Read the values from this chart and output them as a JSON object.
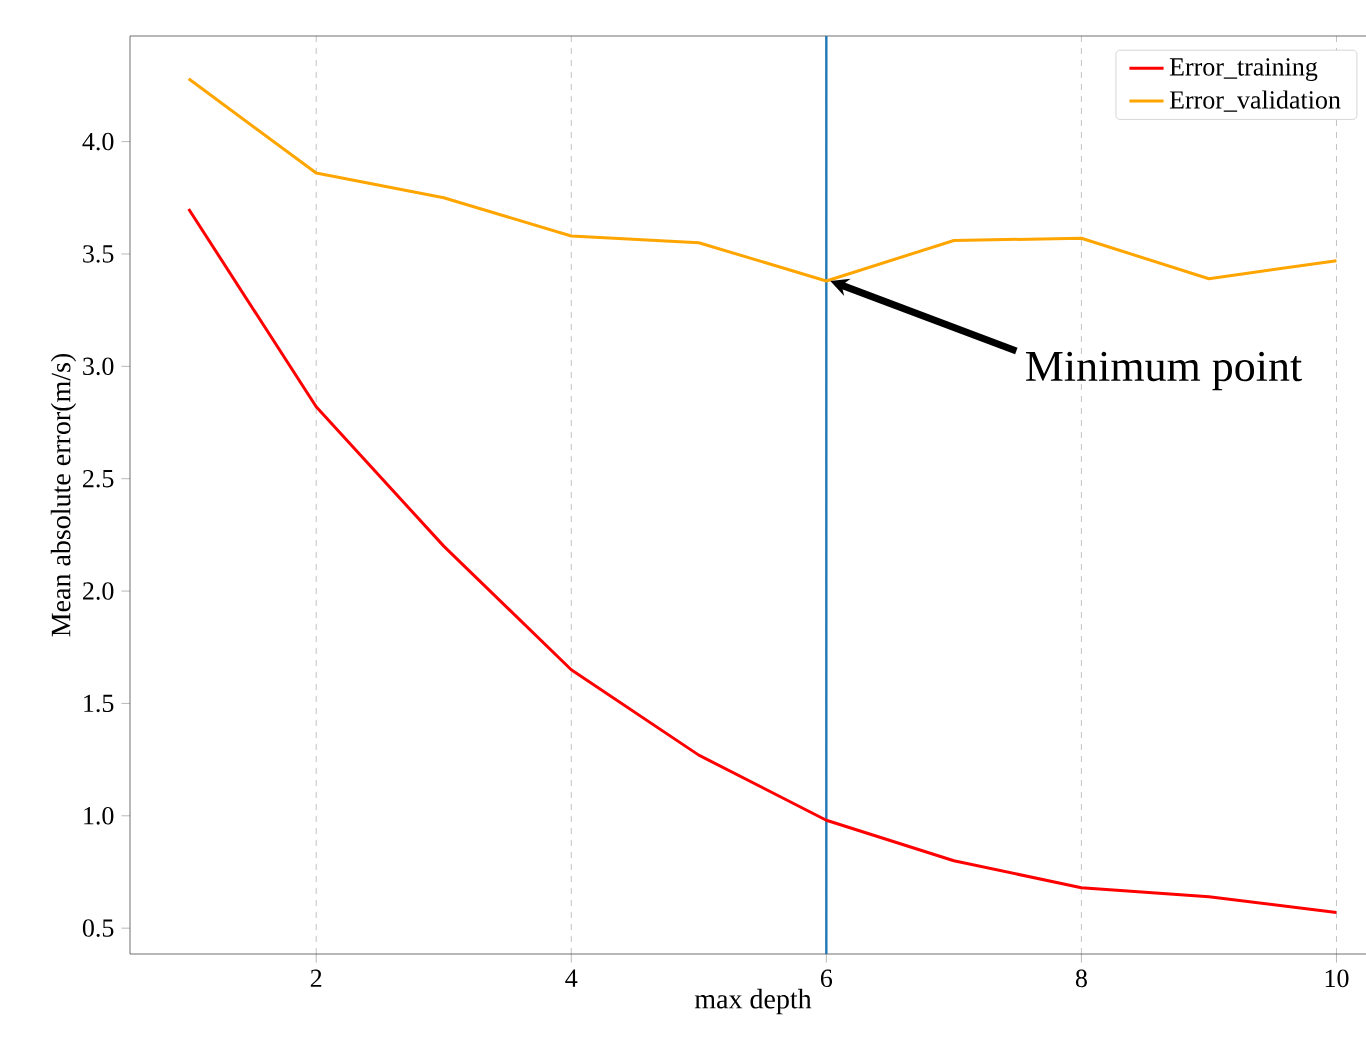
{
  "chart_data": {
    "type": "line",
    "xlabel": "max  depth",
    "ylabel": "Mean absolute error(m/s)",
    "x": [
      1,
      2,
      3,
      4,
      5,
      6,
      7,
      8,
      9,
      10
    ],
    "series": [
      {
        "name": "Error_training",
        "color": "#ff0000",
        "values": [
          3.7,
          2.82,
          2.2,
          1.65,
          1.27,
          0.98,
          0.8,
          0.68,
          0.64,
          0.57
        ]
      },
      {
        "name": "Error_validation",
        "color": "#ffa500",
        "values": [
          4.28,
          3.86,
          3.75,
          3.58,
          3.55,
          3.38,
          3.56,
          3.57,
          3.39,
          3.47
        ]
      }
    ],
    "xlim": [
      0.54,
      10.31
    ],
    "ylim": [
      0.385,
      4.47
    ],
    "xticks": [
      2,
      4,
      6,
      8,
      10
    ],
    "yticks": [
      0.5,
      {
        "value": 1,
        "label": "1.0"
      },
      1.5,
      {
        "value": 2,
        "label": "2.0"
      },
      2.5,
      {
        "value": 3,
        "label": "3.0"
      },
      3.5,
      {
        "value": 4,
        "label": "4.0"
      }
    ],
    "ref_lines": [
      {
        "axis": "x",
        "value": 6,
        "color": "#1f77b4"
      }
    ],
    "annotations": [
      {
        "text": "Minimum point",
        "x": 6,
        "y": 3.38
      }
    ],
    "grid": "x",
    "legend": "top right",
    "marker": "none",
    "line_style": "solid"
  }
}
